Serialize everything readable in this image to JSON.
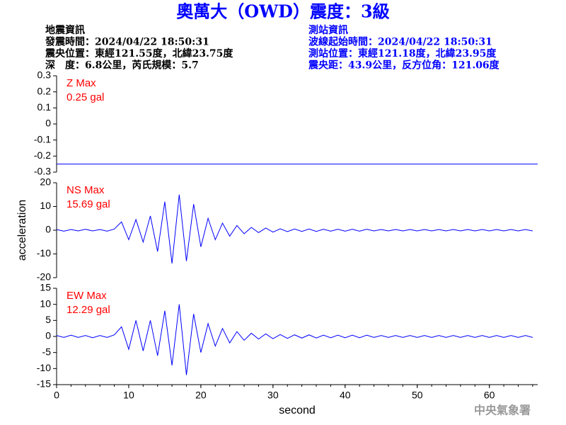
{
  "header": {
    "title": "奧萬大（OWD）震度：3級",
    "left": [
      "地震資訊",
      "發震時間：2024/04/22 18:50:31",
      "震央位置：東經121.55度，北緯23.75度",
      "深　度：6.8公里，芮氏規模：5.7"
    ],
    "right": [
      "測站資訊",
      "波線起始時間：2024/04/22 18:50:31",
      "測站位置：東經121.18度，北緯23.95度",
      "震央距：43.9公里，反方位角：121.06度"
    ]
  },
  "footer": "中央氣象署",
  "chart_data": [
    {
      "type": "line",
      "annotation": [
        "Z Max",
        "0.25 gal"
      ],
      "color": "#0000ff",
      "x": [
        0,
        66.7
      ],
      "values": [
        -0.25,
        -0.25
      ],
      "xlim": [
        0,
        66.7
      ],
      "ylim": [
        -0.3,
        0.3
      ],
      "yticks": [
        -0.3,
        -0.2,
        -0.1,
        0,
        0.1,
        0.2,
        0.3
      ]
    },
    {
      "type": "line",
      "annotation": [
        "NS Max",
        "15.69 gal"
      ],
      "color": "#0000ff",
      "ylabel": "acceleration",
      "x": [
        0,
        1,
        2,
        3,
        4,
        5,
        6,
        7,
        8,
        9,
        10,
        11,
        12,
        13,
        14,
        15,
        16,
        17,
        18,
        19,
        20,
        21,
        22,
        23,
        24,
        25,
        26,
        27,
        28,
        29,
        30,
        31,
        32,
        33,
        34,
        35,
        36,
        37,
        38,
        39,
        40,
        41,
        42,
        43,
        44,
        45,
        46,
        47,
        48,
        49,
        50,
        51,
        52,
        53,
        54,
        55,
        56,
        57,
        58,
        59,
        60,
        61,
        62,
        63,
        64,
        65,
        66
      ],
      "values": [
        0.3,
        -0.4,
        0.3,
        -0.3,
        0.4,
        -0.3,
        0.3,
        -0.4,
        0.5,
        3.5,
        -4,
        4.5,
        -5,
        6,
        -9,
        12,
        -14,
        15,
        -13,
        11,
        -7,
        5,
        -4,
        3,
        -2.5,
        2,
        -1.5,
        1.2,
        -1,
        0.9,
        -0.8,
        0.6,
        -0.6,
        0.5,
        -0.5,
        0.5,
        -0.5,
        0.4,
        -0.4,
        0.4,
        -0.4,
        0.4,
        -0.4,
        0.4,
        -0.3,
        0.3,
        -0.3,
        0.3,
        -0.3,
        0.3,
        -0.3,
        0.3,
        -0.3,
        0.3,
        -0.3,
        0.3,
        -0.3,
        0.3,
        -0.3,
        0.3,
        -0.3,
        0.3,
        -0.3,
        0.3,
        -0.3,
        0.3,
        -0.3
      ],
      "xlim": [
        0,
        66.7
      ],
      "ylim": [
        -20,
        20
      ],
      "yticks": [
        -20,
        -10,
        0,
        10,
        20
      ]
    },
    {
      "type": "line",
      "annotation": [
        "EW Max",
        "12.29 gal"
      ],
      "color": "#0000ff",
      "xlabel": "second",
      "x": [
        0,
        1,
        2,
        3,
        4,
        5,
        6,
        7,
        8,
        9,
        10,
        11,
        12,
        13,
        14,
        15,
        16,
        17,
        18,
        19,
        20,
        21,
        22,
        23,
        24,
        25,
        26,
        27,
        28,
        29,
        30,
        31,
        32,
        33,
        34,
        35,
        36,
        37,
        38,
        39,
        40,
        41,
        42,
        43,
        44,
        45,
        46,
        47,
        48,
        49,
        50,
        51,
        52,
        53,
        54,
        55,
        56,
        57,
        58,
        59,
        60,
        61,
        62,
        63,
        64,
        65,
        66
      ],
      "values": [
        0.3,
        -0.3,
        0.4,
        -0.3,
        0.3,
        -0.4,
        0.3,
        -0.3,
        0.5,
        3,
        -4,
        5,
        -4.5,
        5,
        -6,
        8,
        -9,
        10,
        -12,
        7,
        -5,
        4,
        -3,
        2.5,
        -2,
        1.5,
        -1.2,
        1,
        -0.8,
        0.8,
        -0.7,
        0.6,
        -0.6,
        0.5,
        -0.5,
        0.5,
        -0.5,
        0.4,
        -0.4,
        0.4,
        -0.4,
        0.4,
        -0.4,
        0.4,
        -0.3,
        0.3,
        -0.3,
        0.3,
        -0.3,
        0.3,
        -0.3,
        0.3,
        -0.3,
        0.3,
        -0.3,
        0.3,
        -0.3,
        0.3,
        -0.3,
        0.3,
        -0.3,
        0.3,
        -0.3,
        0.3,
        -0.3,
        0.3,
        -0.3
      ],
      "xlim": [
        0,
        66.7
      ],
      "ylim": [
        -15,
        15
      ],
      "yticks": [
        -15,
        -10,
        -5,
        0,
        5,
        10,
        15
      ],
      "xticks": [
        0,
        10,
        20,
        30,
        40,
        50,
        60
      ]
    }
  ]
}
